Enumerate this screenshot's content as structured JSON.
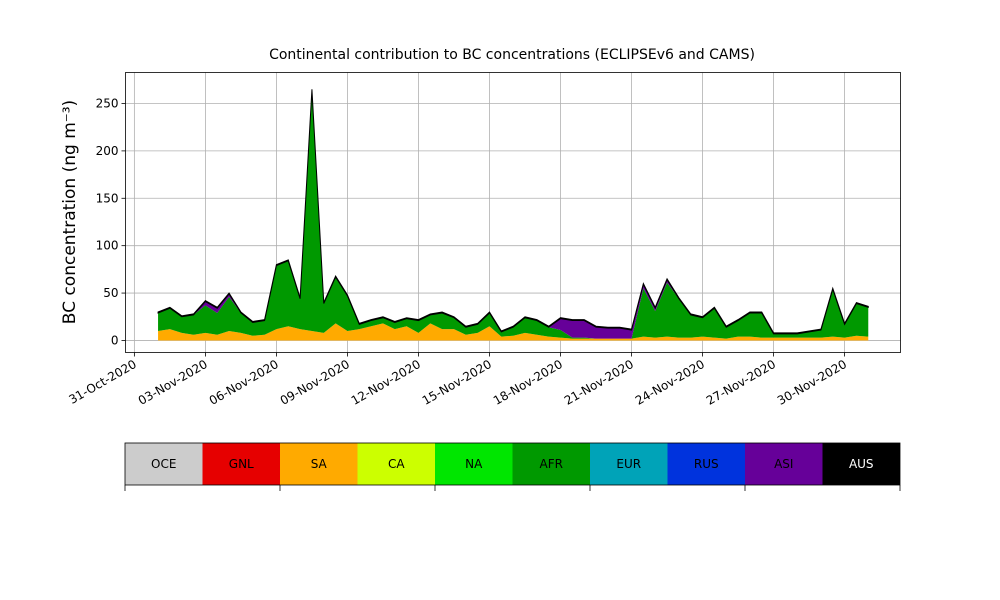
{
  "chart_data": {
    "type": "stacked_area",
    "title": "Continental contribution to BC concentrations (ECLIPSEv6 and CAMS)",
    "y_label": "BC concentration (ng m⁻³)",
    "x": [
      "2020-11-01 00:00",
      "2020-11-01 12:00",
      "2020-11-02 00:00",
      "2020-11-02 12:00",
      "2020-11-03 00:00",
      "2020-11-03 12:00",
      "2020-11-04 00:00",
      "2020-11-04 12:00",
      "2020-11-05 00:00",
      "2020-11-05 12:00",
      "2020-11-06 00:00",
      "2020-11-06 12:00",
      "2020-11-07 00:00",
      "2020-11-07 12:00",
      "2020-11-08 00:00",
      "2020-11-08 12:00",
      "2020-11-09 00:00",
      "2020-11-09 12:00",
      "2020-11-10 00:00",
      "2020-11-10 12:00",
      "2020-11-11 00:00",
      "2020-11-11 12:00",
      "2020-11-12 00:00",
      "2020-11-12 12:00",
      "2020-11-13 00:00",
      "2020-11-13 12:00",
      "2020-11-14 00:00",
      "2020-11-14 12:00",
      "2020-11-15 00:00",
      "2020-11-15 12:00",
      "2020-11-16 00:00",
      "2020-11-16 12:00",
      "2020-11-17 00:00",
      "2020-11-17 12:00",
      "2020-11-18 00:00",
      "2020-11-18 12:00",
      "2020-11-19 00:00",
      "2020-11-19 12:00",
      "2020-11-20 00:00",
      "2020-11-20 12:00",
      "2020-11-21 00:00",
      "2020-11-21 12:00",
      "2020-11-22 00:00",
      "2020-11-22 12:00",
      "2020-11-23 00:00",
      "2020-11-23 12:00",
      "2020-11-24 00:00",
      "2020-11-24 12:00",
      "2020-11-25 00:00",
      "2020-11-25 12:00",
      "2020-11-26 00:00",
      "2020-11-26 12:00",
      "2020-11-27 00:00",
      "2020-11-27 12:00",
      "2020-11-28 00:00",
      "2020-11-28 12:00",
      "2020-11-29 00:00",
      "2020-11-29 12:00",
      "2020-11-30 00:00",
      "2020-11-30 12:00",
      "2020-12-01 00:00"
    ],
    "series": [
      {
        "name": "OCE",
        "color": "#cccccc",
        "values": [
          0,
          0,
          0,
          0,
          0,
          0,
          0,
          0,
          0,
          0,
          0,
          0,
          0,
          0,
          0,
          0,
          0,
          0,
          0,
          0,
          0,
          0,
          0,
          0,
          0,
          0,
          0,
          0,
          0,
          0,
          0,
          0,
          0,
          0,
          0,
          0,
          0,
          0,
          0,
          0,
          0,
          0,
          0,
          0,
          0,
          0,
          0,
          0,
          0,
          0,
          0,
          0,
          0,
          0,
          0,
          0,
          0,
          0,
          0,
          0,
          0
        ]
      },
      {
        "name": "GNL",
        "color": "#e60000",
        "values": [
          0,
          0,
          0,
          0,
          0,
          0,
          0,
          0,
          0,
          0,
          0,
          0,
          0,
          0,
          0,
          0,
          0,
          0,
          0,
          0,
          0,
          0,
          0,
          0,
          0,
          0,
          0,
          0,
          0,
          0,
          0,
          0,
          0,
          0,
          0,
          0,
          0,
          0,
          0,
          0,
          0,
          0,
          0,
          0,
          0,
          0,
          0,
          0,
          0,
          0,
          0,
          0,
          0,
          0,
          0,
          0,
          0,
          0,
          0,
          0,
          0
        ]
      },
      {
        "name": "SA",
        "color": "#ffaa00",
        "values": [
          10,
          12,
          8,
          6,
          8,
          6,
          10,
          8,
          5,
          6,
          12,
          15,
          12,
          10,
          8,
          18,
          10,
          12,
          15,
          18,
          12,
          15,
          8,
          18,
          12,
          12,
          6,
          8,
          15,
          4,
          5,
          8,
          6,
          4,
          3,
          2,
          2,
          2,
          2,
          2,
          2,
          4,
          3,
          4,
          3,
          3,
          4,
          3,
          2,
          4,
          4,
          3,
          3,
          3,
          3,
          3,
          3,
          4,
          3,
          5,
          4
        ]
      },
      {
        "name": "CA",
        "color": "#ccff00",
        "values": [
          0,
          0,
          0,
          0,
          0,
          0,
          0,
          0,
          0,
          0,
          0,
          0,
          0,
          0,
          0,
          0,
          0,
          0,
          0,
          0,
          0,
          0,
          0,
          0,
          0,
          0,
          0,
          0,
          0,
          0,
          0,
          0,
          0,
          0,
          0,
          0,
          0,
          0,
          0,
          0,
          0,
          0,
          0,
          0,
          0,
          0,
          0,
          0,
          0,
          0,
          0,
          0,
          0,
          0,
          0,
          0,
          0,
          0,
          0,
          0,
          0
        ]
      },
      {
        "name": "NA",
        "color": "#00e600",
        "values": [
          0,
          0,
          0,
          0,
          0,
          0,
          0,
          0,
          0,
          0,
          0,
          0,
          0,
          0,
          0,
          0,
          0,
          0,
          0,
          0,
          0,
          0,
          0,
          0,
          0,
          0,
          0,
          0,
          0,
          0,
          0,
          0,
          0,
          0,
          0,
          0,
          0,
          0,
          0,
          0,
          0,
          0,
          0,
          0,
          0,
          0,
          0,
          0,
          0,
          0,
          0,
          0,
          0,
          0,
          0,
          0,
          0,
          0,
          0,
          0,
          0
        ]
      },
      {
        "name": "AFR",
        "color": "#009900",
        "values": [
          19,
          22,
          17,
          21,
          29,
          23,
          36,
          21,
          14,
          15,
          67,
          69,
          32,
          254,
          31,
          49,
          37,
          5,
          6,
          6,
          7,
          8,
          13,
          9,
          17,
          12,
          8,
          9,
          14,
          5,
          9,
          16,
          15,
          10,
          8,
          1,
          1,
          0,
          0,
          0,
          0,
          51,
          28,
          57,
          41,
          24,
          20,
          31,
          12,
          17,
          25,
          26,
          4,
          4,
          4,
          6,
          8,
          50,
          14,
          34,
          31
        ]
      },
      {
        "name": "EUR",
        "color": "#00a3b8",
        "values": [
          0,
          0,
          0,
          0,
          0,
          0,
          0,
          0,
          0,
          0,
          0,
          0,
          0,
          0,
          0,
          0,
          0,
          0,
          0,
          0,
          0,
          0,
          0,
          0,
          0,
          0,
          0,
          0,
          0,
          0,
          0,
          0,
          0,
          0,
          0,
          0,
          0,
          0,
          0,
          0,
          0,
          0,
          0,
          0,
          0,
          0,
          0,
          0,
          0,
          0,
          0,
          0,
          0,
          0,
          0,
          0,
          0,
          0,
          0,
          0,
          0
        ]
      },
      {
        "name": "RUS",
        "color": "#0033dd",
        "values": [
          0,
          0,
          0,
          0,
          0,
          0,
          0,
          0,
          0,
          0,
          0,
          0,
          0,
          0,
          0,
          0,
          0,
          0,
          0,
          0,
          0,
          0,
          0,
          0,
          0,
          0,
          0,
          0,
          0,
          0,
          0,
          0,
          0,
          0,
          0,
          0,
          0,
          0,
          0,
          0,
          0,
          0,
          0,
          0,
          0,
          0,
          0,
          0,
          0,
          0,
          0,
          0,
          0,
          0,
          0,
          0,
          0,
          0,
          0,
          0,
          0
        ]
      },
      {
        "name": "ASI",
        "color": "#660099",
        "values": [
          0,
          0,
          0,
          0,
          4,
          5,
          3,
          0,
          0,
          0,
          0,
          0,
          0,
          0,
          0,
          0,
          0,
          0,
          0,
          0,
          0,
          0,
          0,
          0,
          0,
          0,
          0,
          0,
          0,
          0,
          0,
          0,
          0,
          0,
          12,
          18,
          18,
          12,
          11,
          11,
          9,
          4,
          3,
          3,
          0,
          0,
          0,
          0,
          0,
          0,
          0,
          0,
          0,
          0,
          0,
          0,
          0,
          0,
          0,
          0,
          0
        ]
      },
      {
        "name": "AUS",
        "color": "#000000",
        "values": [
          1,
          1,
          1,
          1,
          1,
          1,
          1,
          1,
          1,
          1,
          1,
          1,
          1,
          1,
          1,
          1,
          1,
          1,
          1,
          1,
          1,
          1,
          1,
          1,
          1,
          1,
          1,
          1,
          1,
          1,
          1,
          1,
          1,
          1,
          1,
          1,
          1,
          1,
          1,
          1,
          1,
          1,
          1,
          1,
          1,
          1,
          1,
          1,
          1,
          1,
          1,
          1,
          1,
          1,
          1,
          1,
          1,
          1,
          1,
          1,
          1
        ]
      }
    ],
    "xlim": [
      "2020-10-30 15:00",
      "2020-12-02 08:40"
    ],
    "xticks": [
      {
        "value": "2020-10-31 00:00",
        "label": "31-Oct-2020"
      },
      {
        "value": "2020-11-03 00:00",
        "label": "03-Nov-2020"
      },
      {
        "value": "2020-11-06 00:00",
        "label": "06-Nov-2020"
      },
      {
        "value": "2020-11-09 00:00",
        "label": "09-Nov-2020"
      },
      {
        "value": "2020-11-12 00:00",
        "label": "12-Nov-2020"
      },
      {
        "value": "2020-11-15 00:00",
        "label": "15-Nov-2020"
      },
      {
        "value": "2020-11-18 00:00",
        "label": "18-Nov-2020"
      },
      {
        "value": "2020-11-21 00:00",
        "label": "21-Nov-2020"
      },
      {
        "value": "2020-11-24 00:00",
        "label": "24-Nov-2020"
      },
      {
        "value": "2020-11-27 00:00",
        "label": "27-Nov-2020"
      },
      {
        "value": "2020-11-30 00:00",
        "label": "30-Nov-2020"
      }
    ],
    "ylim": [
      -12.7,
      282.7
    ],
    "yticks": [
      0,
      50,
      100,
      150,
      200,
      250
    ],
    "grid": true,
    "legend": "colorbar-bottom"
  }
}
